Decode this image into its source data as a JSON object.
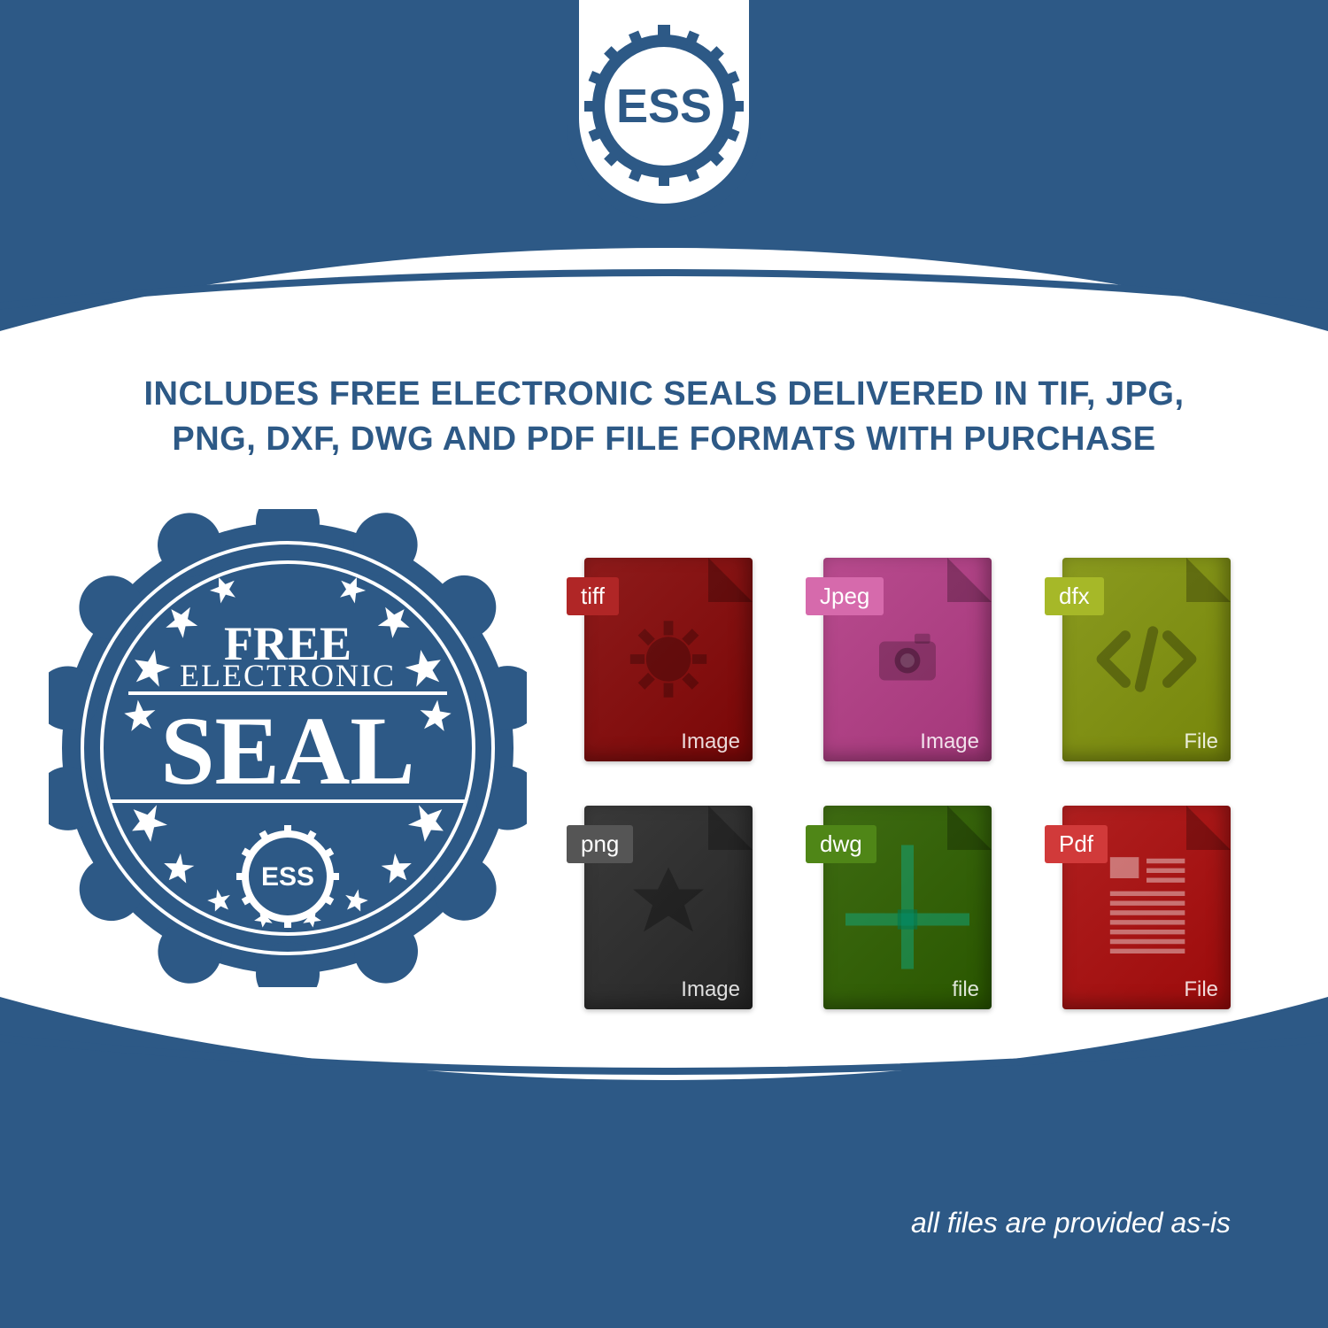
{
  "colors": {
    "bg_blue": "#2d5986",
    "white": "#ffffff",
    "seal_blue": "#2d5986"
  },
  "logo": {
    "text": "ESS",
    "shield_shape": "rounded-bottom-rectangle",
    "gear_icon": true
  },
  "headline": {
    "line1": "INCLUDES FREE ELECTRONIC SEALS DELIVERED IN TIF, JPG,",
    "line2": "PNG, DXF, DWG AND PDF FILE FORMATS WITH PURCHASE",
    "color": "#2d5986",
    "font_size": 38,
    "font_weight": 800
  },
  "seal_badge": {
    "shape": "scalloped-circle",
    "line1": "FREE",
    "line2": "ELECTRONIC",
    "line3": "SEAL",
    "sub_logo_text": "ESS",
    "star_count": 10,
    "color": "#2d5986",
    "text_color": "#ffffff"
  },
  "file_icons": [
    {
      "label": "tiff",
      "sub": "Image",
      "bg": "#8e1b1b",
      "tab_bg": "#b02626",
      "glyph": "gear"
    },
    {
      "label": "Jpeg",
      "sub": "Image",
      "bg": "#b84b8e",
      "tab_bg": "#d66aac",
      "glyph": "camera"
    },
    {
      "label": "dfx",
      "sub": "File",
      "bg": "#8a9a1f",
      "tab_bg": "#a6b828",
      "glyph": "code"
    },
    {
      "label": "png",
      "sub": "Image",
      "bg": "#3a3a3a",
      "tab_bg": "#555555",
      "glyph": "burst"
    },
    {
      "label": "dwg",
      "sub": "file",
      "bg": "#3e6b12",
      "tab_bg": "#4f8617",
      "glyph": "cross"
    },
    {
      "label": "Pdf",
      "sub": "File",
      "bg": "#b01f1f",
      "tab_bg": "#d13a3a",
      "glyph": "doc"
    }
  ],
  "footer_note": "all files are provided as-is"
}
